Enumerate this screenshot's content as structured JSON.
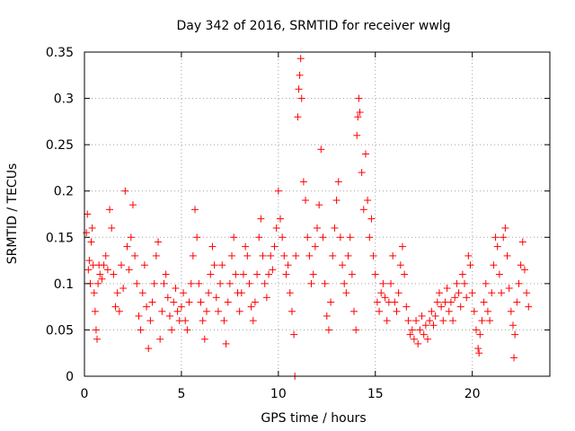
{
  "chart_data": {
    "type": "scatter",
    "title": "Day 342 of 2016, SRMTID for receiver wwlg",
    "xlabel": "GPS time / hours",
    "ylabel": "SRMTID / TECUs",
    "xlim": [
      0,
      24
    ],
    "ylim": [
      0,
      0.35
    ],
    "xticks": [
      0,
      5,
      10,
      15,
      20
    ],
    "yticks": [
      0,
      0.05,
      0.1,
      0.15,
      0.2,
      0.25,
      0.3,
      0.35
    ],
    "xtick_labels": [
      "0",
      "5",
      "10",
      "15",
      "20"
    ],
    "ytick_labels": [
      "0",
      "0.05",
      "0.1",
      "0.15",
      "0.2",
      "0.25",
      "0.3",
      "0.35"
    ],
    "grid": true,
    "marker": "+",
    "color": "#ff0000",
    "series": [
      {
        "name": "SRMTID",
        "points": [
          [
            0.1,
            0.155
          ],
          [
            0.15,
            0.175
          ],
          [
            0.2,
            0.115
          ],
          [
            0.25,
            0.125
          ],
          [
            0.3,
            0.1
          ],
          [
            0.35,
            0.145
          ],
          [
            0.4,
            0.16
          ],
          [
            0.45,
            0.12
          ],
          [
            0.5,
            0.09
          ],
          [
            0.55,
            0.07
          ],
          [
            0.6,
            0.05
          ],
          [
            0.65,
            0.04
          ],
          [
            0.7,
            0.1
          ],
          [
            0.75,
            0.12
          ],
          [
            0.8,
            0.11
          ],
          [
            0.9,
            0.105
          ],
          [
            1.0,
            0.12
          ],
          [
            1.1,
            0.13
          ],
          [
            1.2,
            0.115
          ],
          [
            1.3,
            0.18
          ],
          [
            1.4,
            0.16
          ],
          [
            1.5,
            0.11
          ],
          [
            1.6,
            0.075
          ],
          [
            1.7,
            0.09
          ],
          [
            1.8,
            0.07
          ],
          [
            1.9,
            0.12
          ],
          [
            2.0,
            0.095
          ],
          [
            2.1,
            0.2
          ],
          [
            2.2,
            0.14
          ],
          [
            2.3,
            0.115
          ],
          [
            2.4,
            0.15
          ],
          [
            2.5,
            0.185
          ],
          [
            2.6,
            0.13
          ],
          [
            2.7,
            0.1
          ],
          [
            2.8,
            0.065
          ],
          [
            2.9,
            0.05
          ],
          [
            3.0,
            0.09
          ],
          [
            3.1,
            0.12
          ],
          [
            3.2,
            0.075
          ],
          [
            3.3,
            0.03
          ],
          [
            3.4,
            0.06
          ],
          [
            3.5,
            0.08
          ],
          [
            3.6,
            0.1
          ],
          [
            3.7,
            0.13
          ],
          [
            3.8,
            0.145
          ],
          [
            3.9,
            0.04
          ],
          [
            4.0,
            0.07
          ],
          [
            4.1,
            0.1
          ],
          [
            4.2,
            0.11
          ],
          [
            4.3,
            0.085
          ],
          [
            4.4,
            0.065
          ],
          [
            4.5,
            0.05
          ],
          [
            4.6,
            0.08
          ],
          [
            4.7,
            0.095
          ],
          [
            4.8,
            0.07
          ],
          [
            4.9,
            0.06
          ],
          [
            5.0,
            0.075
          ],
          [
            5.1,
            0.09
          ],
          [
            5.2,
            0.06
          ],
          [
            5.3,
            0.05
          ],
          [
            5.4,
            0.08
          ],
          [
            5.5,
            0.1
          ],
          [
            5.6,
            0.13
          ],
          [
            5.7,
            0.18
          ],
          [
            5.8,
            0.15
          ],
          [
            5.9,
            0.1
          ],
          [
            6.0,
            0.08
          ],
          [
            6.1,
            0.06
          ],
          [
            6.2,
            0.04
          ],
          [
            6.3,
            0.07
          ],
          [
            6.4,
            0.09
          ],
          [
            6.5,
            0.11
          ],
          [
            6.6,
            0.14
          ],
          [
            6.7,
            0.12
          ],
          [
            6.8,
            0.085
          ],
          [
            6.9,
            0.07
          ],
          [
            7.0,
            0.1
          ],
          [
            7.1,
            0.12
          ],
          [
            7.2,
            0.06
          ],
          [
            7.3,
            0.035
          ],
          [
            7.4,
            0.08
          ],
          [
            7.5,
            0.1
          ],
          [
            7.6,
            0.13
          ],
          [
            7.7,
            0.15
          ],
          [
            7.8,
            0.11
          ],
          [
            7.9,
            0.09
          ],
          [
            8.0,
            0.07
          ],
          [
            8.1,
            0.09
          ],
          [
            8.2,
            0.11
          ],
          [
            8.3,
            0.14
          ],
          [
            8.4,
            0.13
          ],
          [
            8.5,
            0.1
          ],
          [
            8.6,
            0.075
          ],
          [
            8.7,
            0.06
          ],
          [
            8.8,
            0.08
          ],
          [
            8.9,
            0.11
          ],
          [
            9.0,
            0.15
          ],
          [
            9.1,
            0.17
          ],
          [
            9.2,
            0.13
          ],
          [
            9.3,
            0.1
          ],
          [
            9.4,
            0.085
          ],
          [
            9.5,
            0.11
          ],
          [
            9.6,
            0.13
          ],
          [
            9.7,
            0.115
          ],
          [
            9.8,
            0.14
          ],
          [
            9.9,
            0.16
          ],
          [
            10.0,
            0.2
          ],
          [
            10.1,
            0.17
          ],
          [
            10.2,
            0.15
          ],
          [
            10.3,
            0.13
          ],
          [
            10.4,
            0.11
          ],
          [
            10.5,
            0.12
          ],
          [
            10.6,
            0.09
          ],
          [
            10.7,
            0.07
          ],
          [
            10.8,
            0.045
          ],
          [
            10.85,
            0.0
          ],
          [
            10.9,
            0.13
          ],
          [
            11.0,
            0.28
          ],
          [
            11.05,
            0.31
          ],
          [
            11.1,
            0.325
          ],
          [
            11.15,
            0.343
          ],
          [
            11.2,
            0.3
          ],
          [
            11.3,
            0.21
          ],
          [
            11.4,
            0.19
          ],
          [
            11.5,
            0.15
          ],
          [
            11.6,
            0.13
          ],
          [
            11.7,
            0.1
          ],
          [
            11.8,
            0.11
          ],
          [
            11.9,
            0.14
          ],
          [
            12.0,
            0.16
          ],
          [
            12.1,
            0.185
          ],
          [
            12.2,
            0.245
          ],
          [
            12.3,
            0.15
          ],
          [
            12.4,
            0.1
          ],
          [
            12.5,
            0.065
          ],
          [
            12.6,
            0.05
          ],
          [
            12.7,
            0.08
          ],
          [
            12.8,
            0.13
          ],
          [
            12.9,
            0.16
          ],
          [
            13.0,
            0.19
          ],
          [
            13.1,
            0.21
          ],
          [
            13.2,
            0.15
          ],
          [
            13.3,
            0.12
          ],
          [
            13.4,
            0.1
          ],
          [
            13.5,
            0.09
          ],
          [
            13.6,
            0.13
          ],
          [
            13.7,
            0.15
          ],
          [
            13.8,
            0.11
          ],
          [
            13.9,
            0.07
          ],
          [
            14.0,
            0.05
          ],
          [
            14.05,
            0.26
          ],
          [
            14.1,
            0.28
          ],
          [
            14.15,
            0.3
          ],
          [
            14.2,
            0.285
          ],
          [
            14.3,
            0.22
          ],
          [
            14.4,
            0.18
          ],
          [
            14.5,
            0.24
          ],
          [
            14.6,
            0.19
          ],
          [
            14.7,
            0.15
          ],
          [
            14.8,
            0.17
          ],
          [
            14.9,
            0.13
          ],
          [
            15.0,
            0.11
          ],
          [
            15.1,
            0.08
          ],
          [
            15.2,
            0.07
          ],
          [
            15.3,
            0.09
          ],
          [
            15.4,
            0.1
          ],
          [
            15.5,
            0.085
          ],
          [
            15.6,
            0.06
          ],
          [
            15.7,
            0.08
          ],
          [
            15.8,
            0.1
          ],
          [
            15.9,
            0.13
          ],
          [
            16.0,
            0.08
          ],
          [
            16.1,
            0.07
          ],
          [
            16.2,
            0.09
          ],
          [
            16.3,
            0.12
          ],
          [
            16.4,
            0.14
          ],
          [
            16.5,
            0.11
          ],
          [
            16.6,
            0.075
          ],
          [
            16.7,
            0.06
          ],
          [
            16.8,
            0.045
          ],
          [
            16.9,
            0.05
          ],
          [
            17.0,
            0.04
          ],
          [
            17.1,
            0.06
          ],
          [
            17.2,
            0.035
          ],
          [
            17.3,
            0.05
          ],
          [
            17.4,
            0.065
          ],
          [
            17.5,
            0.045
          ],
          [
            17.6,
            0.055
          ],
          [
            17.7,
            0.04
          ],
          [
            17.8,
            0.06
          ],
          [
            17.9,
            0.07
          ],
          [
            18.0,
            0.055
          ],
          [
            18.1,
            0.065
          ],
          [
            18.2,
            0.08
          ],
          [
            18.3,
            0.09
          ],
          [
            18.4,
            0.075
          ],
          [
            18.5,
            0.06
          ],
          [
            18.6,
            0.08
          ],
          [
            18.7,
            0.095
          ],
          [
            18.8,
            0.07
          ],
          [
            18.9,
            0.08
          ],
          [
            19.0,
            0.06
          ],
          [
            19.1,
            0.085
          ],
          [
            19.2,
            0.1
          ],
          [
            19.3,
            0.09
          ],
          [
            19.4,
            0.075
          ],
          [
            19.5,
            0.11
          ],
          [
            19.6,
            0.1
          ],
          [
            19.7,
            0.085
          ],
          [
            19.8,
            0.13
          ],
          [
            19.9,
            0.12
          ],
          [
            20.0,
            0.09
          ],
          [
            20.1,
            0.07
          ],
          [
            20.2,
            0.05
          ],
          [
            20.3,
            0.03
          ],
          [
            20.35,
            0.025
          ],
          [
            20.4,
            0.045
          ],
          [
            20.5,
            0.06
          ],
          [
            20.6,
            0.08
          ],
          [
            20.7,
            0.1
          ],
          [
            20.8,
            0.07
          ],
          [
            20.9,
            0.06
          ],
          [
            21.0,
            0.09
          ],
          [
            21.1,
            0.12
          ],
          [
            21.2,
            0.15
          ],
          [
            21.3,
            0.14
          ],
          [
            21.4,
            0.11
          ],
          [
            21.5,
            0.09
          ],
          [
            21.6,
            0.15
          ],
          [
            21.7,
            0.16
          ],
          [
            21.8,
            0.13
          ],
          [
            21.9,
            0.095
          ],
          [
            22.0,
            0.07
          ],
          [
            22.1,
            0.055
          ],
          [
            22.15,
            0.02
          ],
          [
            22.2,
            0.045
          ],
          [
            22.3,
            0.08
          ],
          [
            22.4,
            0.1
          ],
          [
            22.5,
            0.12
          ],
          [
            22.6,
            0.145
          ],
          [
            22.7,
            0.115
          ],
          [
            22.8,
            0.09
          ],
          [
            22.9,
            0.075
          ]
        ]
      }
    ]
  }
}
